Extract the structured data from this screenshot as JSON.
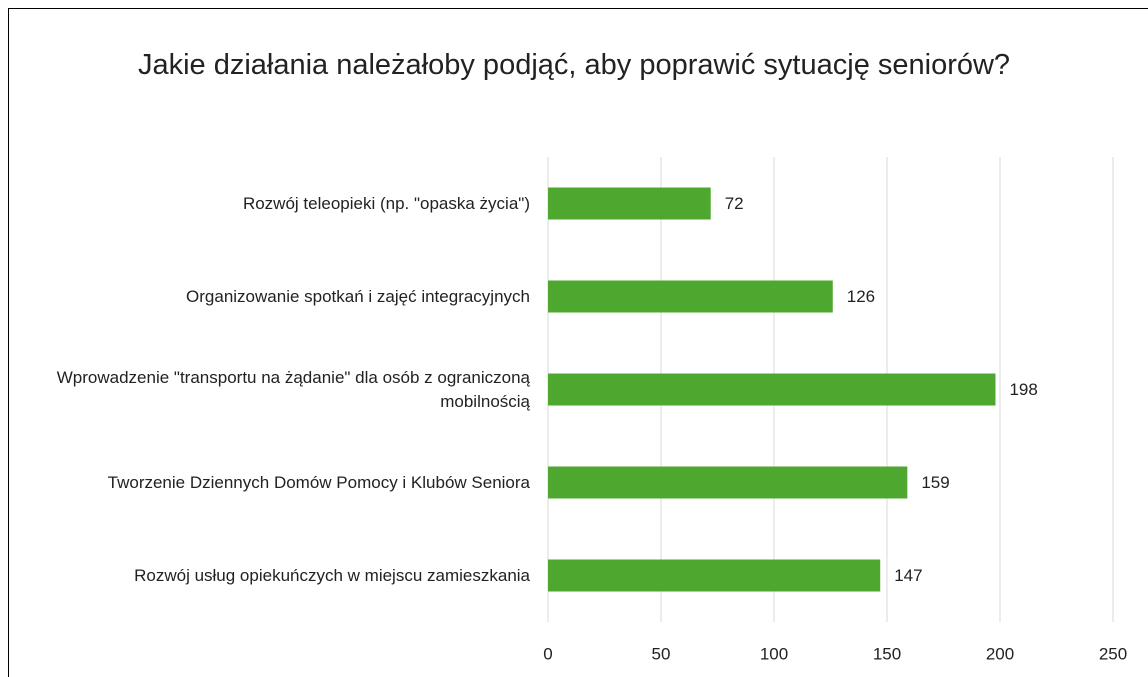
{
  "chart_data": {
    "type": "bar",
    "orientation": "horizontal",
    "title": "Jakie działania należałoby podjąć, aby poprawić sytuację seniorów?",
    "categories": [
      "Rozwój teleopieki (np. \"opaska życia\")",
      "Organizowanie spotkań i zajęć integracyjnych",
      "Wprowadzenie \"transportu na żądanie\" dla osób z ograniczoną mobilnością",
      "Tworzenie Dziennych Domów Pomocy i Klubów Seniora",
      "Rozwój usług opiekuńczych w miejscu zamieszkania"
    ],
    "values": [
      72,
      126,
      198,
      159,
      147
    ],
    "color": "#4ea72e",
    "xlim": [
      0,
      250
    ],
    "xticks": [
      0,
      50,
      100,
      150,
      200,
      250
    ],
    "grid": true
  }
}
